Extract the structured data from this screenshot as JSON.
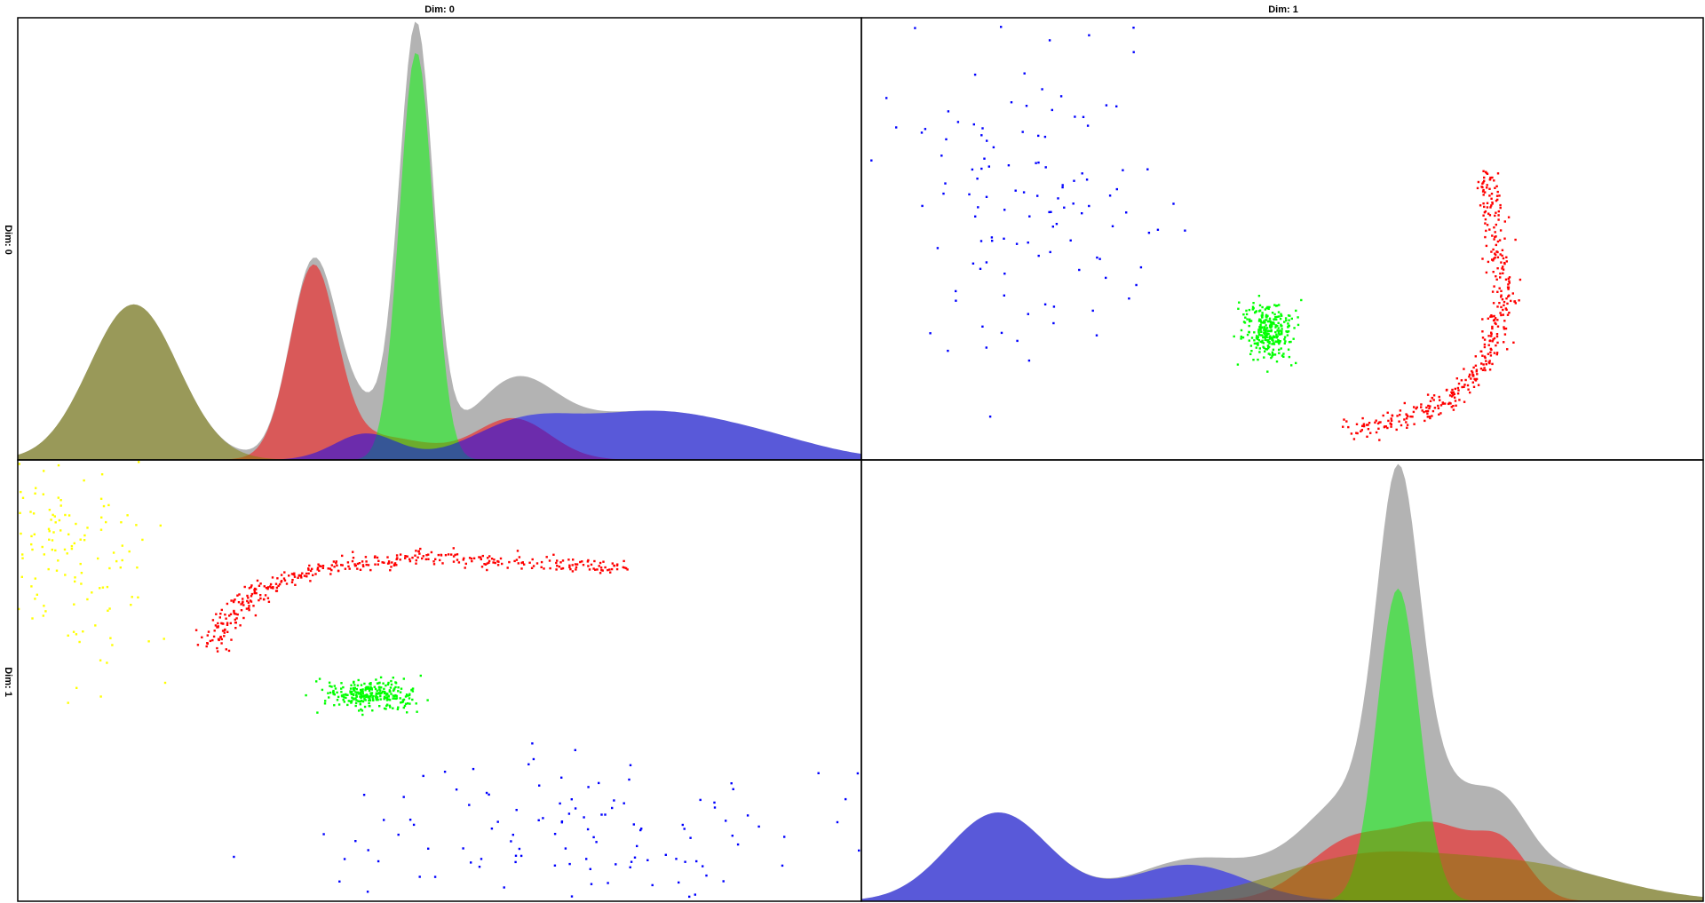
{
  "chart_data": {
    "type": "scatter",
    "title": "",
    "col_titles": [
      "Dim: 0",
      "Dim: 1"
    ],
    "row_titles": [
      "Dim: 0",
      "Dim: 1"
    ],
    "diagonal": "kde",
    "off_diagonal": "scatter",
    "grid": false,
    "legend": "none",
    "xlim": {
      "dim0": [
        -2.3,
        5.7
      ],
      "dim1": [
        -2.3,
        5.7
      ]
    },
    "total_color": "#999999",
    "clusters": [
      {
        "color": "#ff0000",
        "shape": "arc",
        "arc": {
          "cx": 1.7,
          "cy": 2.25,
          "r": 1.5,
          "start_deg": 180,
          "end_deg": 270,
          "r_noise": 0.07
        },
        "arm": {
          "y": 3.85,
          "x_from": 1.7,
          "x_to": 3.6,
          "slope": -0.12,
          "noise": 0.06
        },
        "n": 380
      },
      {
        "color": "#00ff00",
        "shape": "gaussian",
        "mean": [
          1.48,
          1.56
        ],
        "sd": [
          0.18,
          0.12
        ],
        "n": 280
      },
      {
        "color": "#0000ff",
        "shape": "gaussian",
        "mean": [
          3.3,
          -0.7
        ],
        "sd": [
          1.2,
          0.6
        ],
        "n": 120
      },
      {
        "color": "#ffff00",
        "shape": "gaussian",
        "mean": [
          -1.1,
          4.05
        ],
        "sd": [
          0.42,
          1.0
        ],
        "n": 170
      }
    ],
    "kde_dim0": [
      {
        "color": "#ff0000",
        "components": [
          {
            "mu": 0.5,
            "sd": 0.22,
            "w": 0.62
          },
          {
            "mu": 1.1,
            "sd": 0.5,
            "w": 0.18
          },
          {
            "mu": 2.4,
            "sd": 0.35,
            "w": 0.22
          }
        ]
      },
      {
        "color": "#00ff00",
        "components": [
          {
            "mu": 1.48,
            "sd": 0.16,
            "w": 1.0
          }
        ]
      },
      {
        "color": "#0000ff",
        "components": [
          {
            "mu": 1.0,
            "sd": 0.3,
            "w": 0.12
          },
          {
            "mu": 2.5,
            "sd": 0.5,
            "w": 0.28
          },
          {
            "mu": 3.6,
            "sd": 0.6,
            "w": 0.35
          },
          {
            "mu": 4.6,
            "sd": 0.65,
            "w": 0.25
          }
        ]
      },
      {
        "color": "#808000",
        "components": [
          {
            "mu": -1.2,
            "sd": 0.42,
            "w": 1.0
          }
        ]
      }
    ],
    "kde_dim1": [
      {
        "color": "#ff0000",
        "components": [
          {
            "mu": 2.4,
            "sd": 0.45,
            "w": 0.45
          },
          {
            "mu": 3.2,
            "sd": 0.35,
            "w": 0.35
          },
          {
            "mu": 3.8,
            "sd": 0.25,
            "w": 0.2
          }
        ]
      },
      {
        "color": "#00ff00",
        "components": [
          {
            "mu": 2.8,
            "sd": 0.2,
            "w": 1.0
          }
        ]
      },
      {
        "color": "#0000ff",
        "components": [
          {
            "mu": -1.0,
            "sd": 0.48,
            "w": 0.68
          },
          {
            "mu": 0.8,
            "sd": 0.55,
            "w": 0.32
          }
        ]
      },
      {
        "color": "#808000",
        "components": [
          {
            "mu": 2.5,
            "sd": 0.85,
            "w": 0.6
          },
          {
            "mu": 4.1,
            "sd": 0.8,
            "w": 0.4
          }
        ]
      }
    ]
  }
}
